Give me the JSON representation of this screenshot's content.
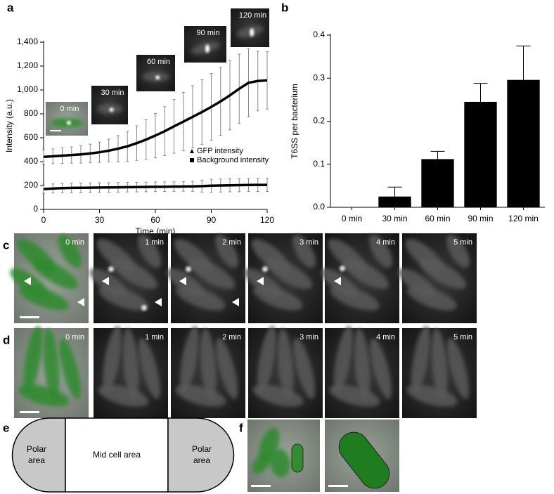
{
  "chart_data": [
    {
      "type": "line",
      "panel_label": "a",
      "xlabel": "Time (min)",
      "ylabel": "Intensity (a.u.)",
      "x": [
        0,
        5,
        10,
        15,
        20,
        25,
        30,
        35,
        40,
        45,
        50,
        55,
        60,
        65,
        70,
        75,
        80,
        85,
        90,
        95,
        100,
        105,
        110,
        115,
        120
      ],
      "xlim": [
        0,
        120
      ],
      "xticks": [
        0,
        30,
        60,
        90,
        120
      ],
      "ylim": [
        0,
        1400
      ],
      "yticks": [
        0,
        200,
        400,
        600,
        800,
        {
          "value": 1000,
          "label": "1,000"
        },
        {
          "value": 1200,
          "label": "1,200"
        },
        {
          "value": 1400,
          "label": "1,400"
        }
      ],
      "series": [
        {
          "name": "GFP intensity",
          "marker": "triangle",
          "color": "#000000",
          "values": [
            440,
            445,
            450,
            455,
            460,
            468,
            478,
            492,
            508,
            528,
            555,
            585,
            618,
            655,
            695,
            735,
            775,
            815,
            858,
            905,
            955,
            1010,
            1060,
            1075,
            1080
          ],
          "errors": [
            60,
            62,
            65,
            68,
            72,
            78,
            85,
            95,
            110,
            125,
            145,
            165,
            185,
            205,
            225,
            245,
            260,
            270,
            280,
            285,
            290,
            290,
            285,
            250,
            240
          ]
        },
        {
          "name": "Background intensity",
          "marker": "square",
          "color": "#000000",
          "values": [
            170,
            175,
            178,
            180,
            181,
            182,
            183,
            184,
            185,
            186,
            187,
            188,
            189,
            190,
            191,
            192,
            193,
            195,
            198,
            200,
            202,
            203,
            204,
            205,
            205
          ],
          "errors": [
            35,
            38,
            40,
            40,
            40,
            40,
            40,
            40,
            40,
            40,
            40,
            40,
            40,
            40,
            40,
            40,
            42,
            50,
            55,
            55,
            55,
            55,
            55,
            55,
            55
          ]
        }
      ],
      "annotations": [
        "0 min",
        "30 min",
        "60 min",
        "90 min",
        "120 min"
      ]
    },
    {
      "type": "bar",
      "panel_label": "b",
      "ylabel": "T6SS per bacterium",
      "categories": [
        "0 min",
        "30 min",
        "60 min",
        "90 min",
        "120 min"
      ],
      "values": [
        0,
        0.025,
        0.112,
        0.245,
        0.296
      ],
      "errors": [
        0,
        0.022,
        0.018,
        0.043,
        0.079
      ],
      "color": "#000000",
      "ylim": [
        0,
        0.4
      ],
      "yticks": [
        {
          "value": 0,
          "label": "0.0"
        },
        0.1,
        0.2,
        0.3,
        0.4
      ]
    }
  ],
  "panel_c": {
    "label": "c",
    "frames": [
      "0 min",
      "1 min",
      "2 min",
      "3 min",
      "4 min",
      "5 min"
    ]
  },
  "panel_d": {
    "label": "d",
    "frames": [
      "0 min",
      "1 min",
      "2 min",
      "3 min",
      "4 min",
      "5 min"
    ]
  },
  "panel_e": {
    "label": "e",
    "regions": [
      "Polar area",
      "Mid cell area",
      "Polar area"
    ]
  },
  "panel_f": {
    "label": "f"
  }
}
